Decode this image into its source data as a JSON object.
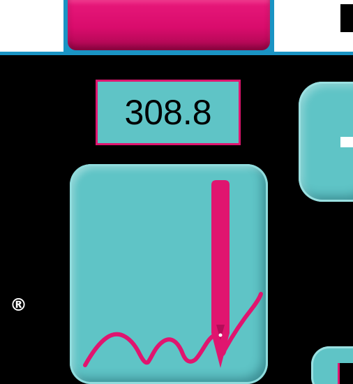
{
  "readout": {
    "value": "308.8"
  },
  "trademark": {
    "symbol": "®"
  },
  "icons": {
    "signature": "pen-signature-icon",
    "right_button": "minus-icon"
  },
  "colors": {
    "accent_pink": "#e0156f",
    "panel_teal": "#5fc4c6",
    "rule_blue": "#1a94c4",
    "background": "#000000"
  }
}
